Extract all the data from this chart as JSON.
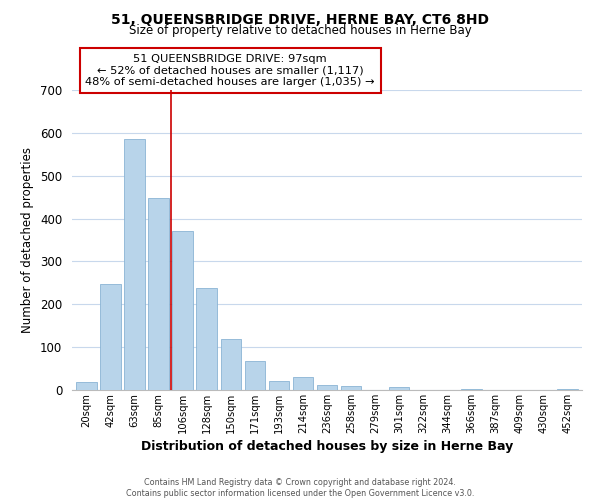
{
  "title": "51, QUEENSBRIDGE DRIVE, HERNE BAY, CT6 8HD",
  "subtitle": "Size of property relative to detached houses in Herne Bay",
  "xlabel": "Distribution of detached houses by size in Herne Bay",
  "ylabel": "Number of detached properties",
  "bar_labels": [
    "20sqm",
    "42sqm",
    "63sqm",
    "85sqm",
    "106sqm",
    "128sqm",
    "150sqm",
    "171sqm",
    "193sqm",
    "214sqm",
    "236sqm",
    "258sqm",
    "279sqm",
    "301sqm",
    "322sqm",
    "344sqm",
    "366sqm",
    "387sqm",
    "409sqm",
    "430sqm",
    "452sqm"
  ],
  "bar_values": [
    18,
    248,
    585,
    448,
    372,
    238,
    120,
    68,
    22,
    30,
    12,
    10,
    0,
    8,
    0,
    0,
    3,
    0,
    0,
    0,
    2
  ],
  "bar_color": "#b8d4ea",
  "bar_edge_color": "#8ab4d4",
  "bg_color": "#ffffff",
  "grid_color": "#c8d8ec",
  "annotation_box_text": "51 QUEENSBRIDGE DRIVE: 97sqm\n← 52% of detached houses are smaller (1,117)\n48% of semi-detached houses are larger (1,035) →",
  "annotation_box_color": "#ffffff",
  "annotation_box_edge_color": "#cc0000",
  "vline_color": "#cc0000",
  "vline_x": 3.5,
  "ylim": [
    0,
    700
  ],
  "yticks": [
    0,
    100,
    200,
    300,
    400,
    500,
    600,
    700
  ],
  "footer_line1": "Contains HM Land Registry data © Crown copyright and database right 2024.",
  "footer_line2": "Contains public sector information licensed under the Open Government Licence v3.0."
}
